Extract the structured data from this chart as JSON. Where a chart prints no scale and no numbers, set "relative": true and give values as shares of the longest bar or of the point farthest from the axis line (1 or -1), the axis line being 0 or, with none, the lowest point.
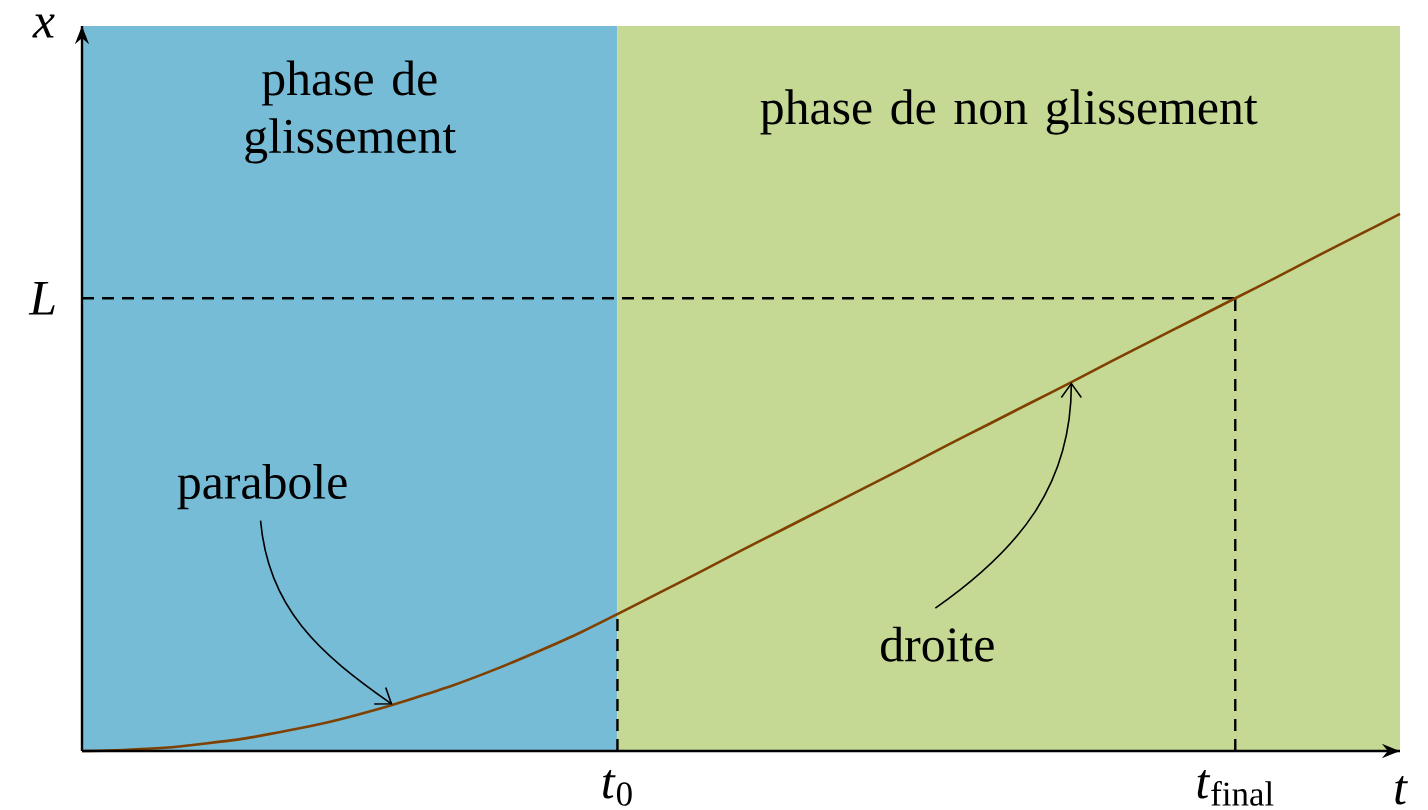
{
  "chart_data": {
    "type": "line",
    "relative": true,
    "xlabel": "t",
    "ylabel": "x",
    "categories": [
      null,
      null,
      null,
      null,
      null,
      null,
      null,
      null,
      null,
      null,
      null,
      null,
      null,
      "*t*$_{0}$",
      null,
      null,
      null,
      null,
      null,
      null,
      null,
      null,
      null,
      null,
      null,
      null,
      null,
      null,
      "*t*$_{final}$",
      null,
      null,
      null,
      null
    ],
    "series": [
      {
        "color": "#804000",
        "values": [
          0,
          0.002,
          0.006,
          0.014,
          0.024,
          0.038,
          0.054,
          0.074,
          0.097,
          0.122,
          0.151,
          0.183,
          0.217,
          0.255,
          0.294,
          0.333,
          0.373,
          0.412,
          0.451,
          0.49,
          0.529,
          0.569,
          0.608,
          0.647,
          0.686,
          0.726,
          0.765,
          0.804,
          0.843,
          0.882,
          0.922,
          0.961,
          1
        ]
      }
    ],
    "ref_lines": [
      {
        "axis": "y",
        "value": 0.843,
        "label": "L",
        "line_style": "dashed"
      },
      {
        "axis": "x",
        "value": "*t*$_{0}$",
        "line_style": "dashed"
      },
      {
        "axis": "x",
        "value": "*t*$_{final}$",
        "line_style": "dashed"
      }
    ],
    "annotations": [
      "phase de glissement",
      "phase de non glissement",
      "parabole",
      "droite"
    ]
  }
}
